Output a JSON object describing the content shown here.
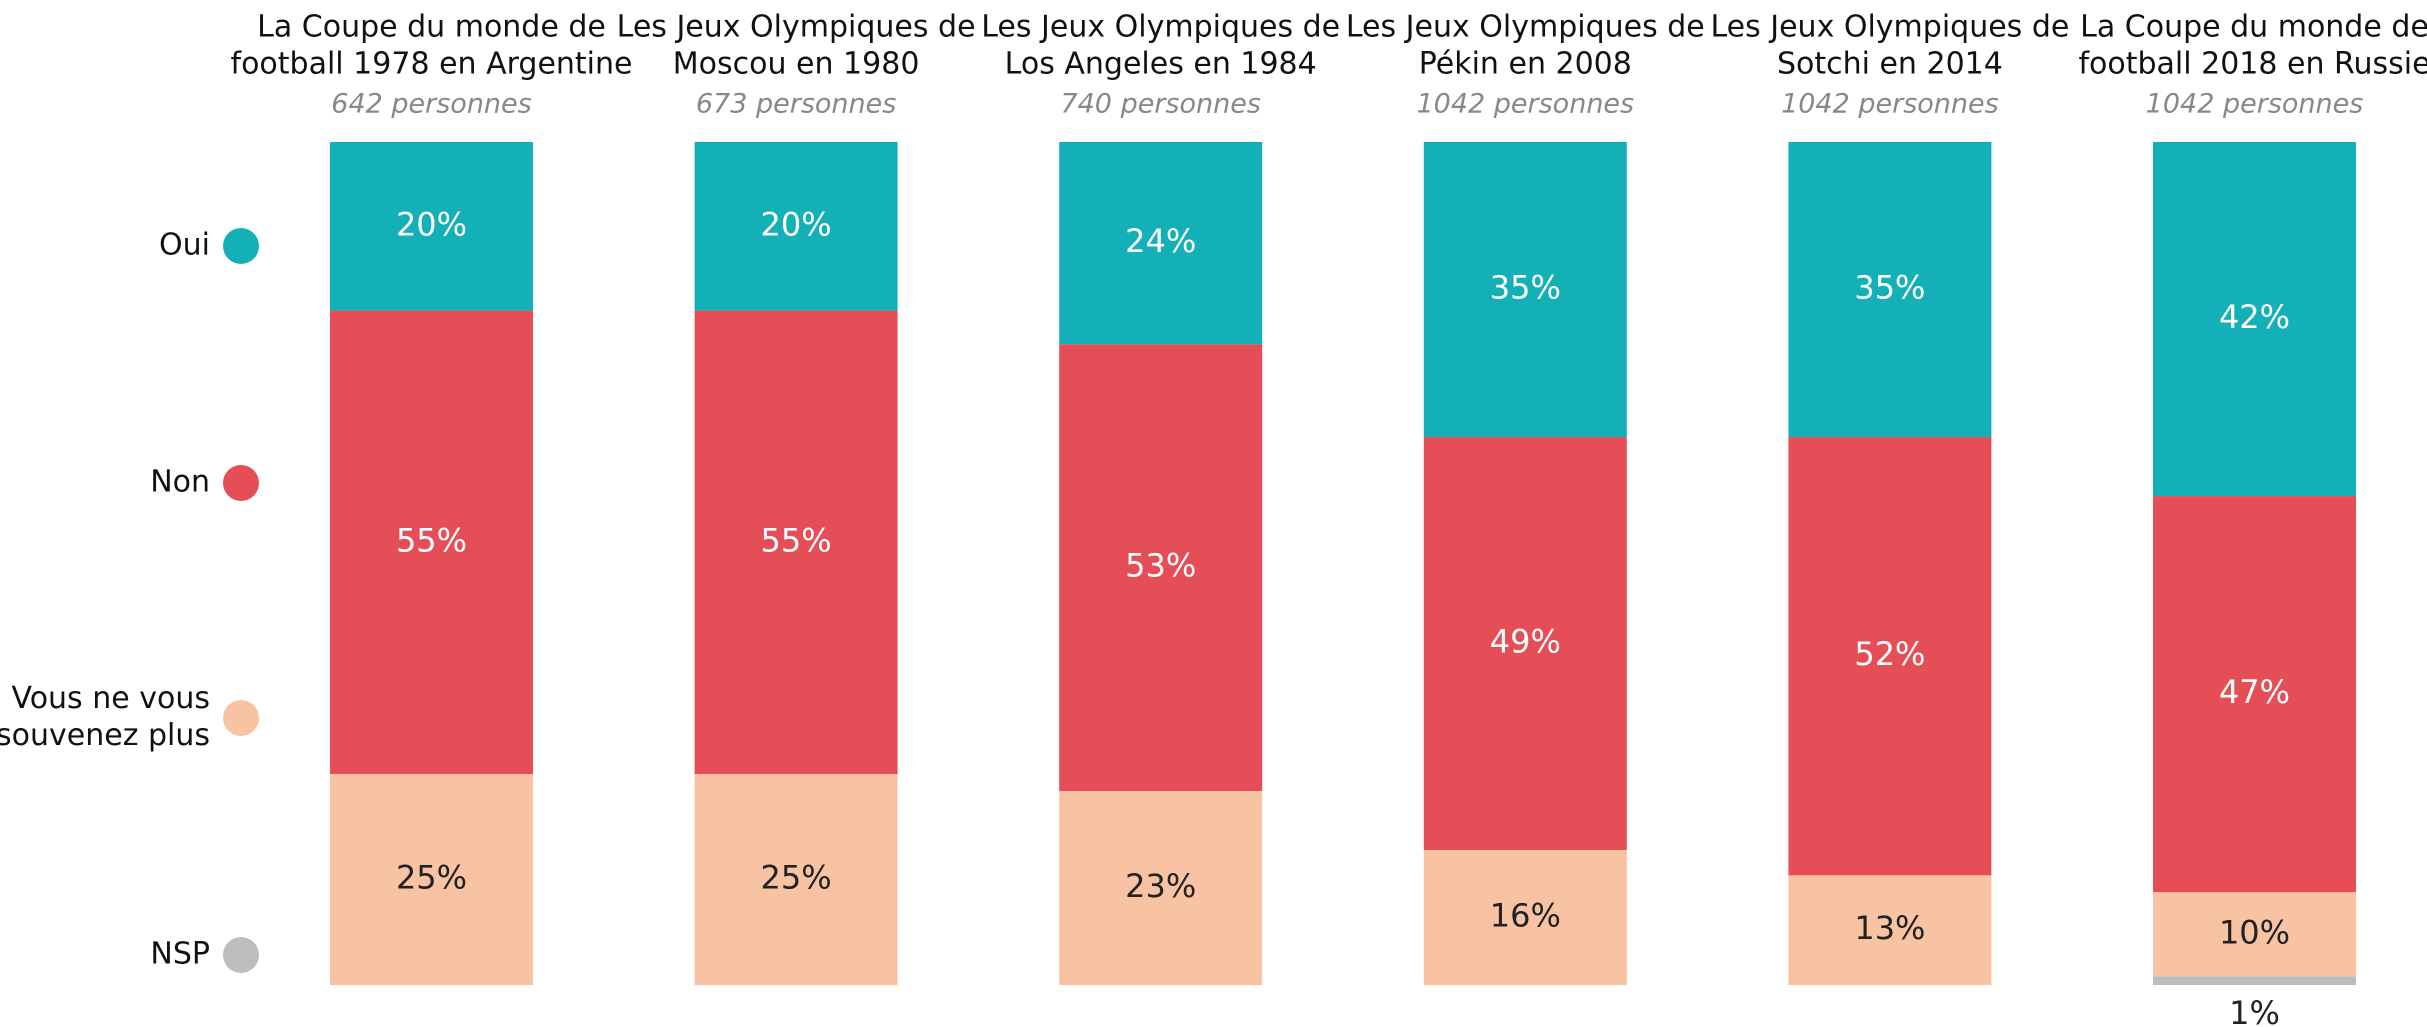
{
  "chart_data": {
    "type": "stacked_bar",
    "categories": [
      [
        "La Coupe du monde de",
        "football 1978 en Argentine"
      ],
      [
        "Les Jeux Olympiques de",
        "Moscou en 1980"
      ],
      [
        "Les Jeux Olympiques de",
        "Los Angeles en 1984"
      ],
      [
        "Les Jeux Olympiques de",
        "Pékin en 2008"
      ],
      [
        "Les Jeux Olympiques de",
        "Sotchi en 2014"
      ],
      [
        "La Coupe du monde de",
        "football 2018 en Russie"
      ]
    ],
    "sample_sizes": [
      "642 personnes",
      "673 personnes",
      "740 personnes",
      "1042 personnes",
      "1042 personnes",
      "1042 personnes"
    ],
    "ylim": [
      0,
      100
    ],
    "series": [
      {
        "name": [
          "Oui"
        ],
        "color": "#14b0b8",
        "label_color": "#ffffff",
        "values": [
          20,
          20,
          24,
          35,
          35,
          42
        ],
        "value_labels": [
          "20%",
          "20%",
          "24%",
          "35%",
          "35%",
          "42%"
        ]
      },
      {
        "name": [
          "Non"
        ],
        "color": "#e64e57",
        "label_color": "#ffffff",
        "values": [
          55,
          55,
          53,
          49,
          52,
          47
        ],
        "value_labels": [
          "55%",
          "55%",
          "53%",
          "49%",
          "52%",
          "47%"
        ]
      },
      {
        "name": [
          "Vous ne vous",
          "souvenez plus"
        ],
        "color": "#f7c3a3",
        "label_color": "#222222",
        "values": [
          25,
          25,
          23,
          16,
          13,
          10
        ],
        "value_labels": [
          "25%",
          "25%",
          "23%",
          "16%",
          "13%",
          "10%"
        ]
      },
      {
        "name": [
          "NSP"
        ],
        "color": "#bdbdbd",
        "label_color": "#222222",
        "values": [
          null,
          null,
          null,
          null,
          null,
          1
        ],
        "value_labels": [
          null,
          null,
          null,
          null,
          null,
          "1%"
        ]
      }
    ]
  }
}
